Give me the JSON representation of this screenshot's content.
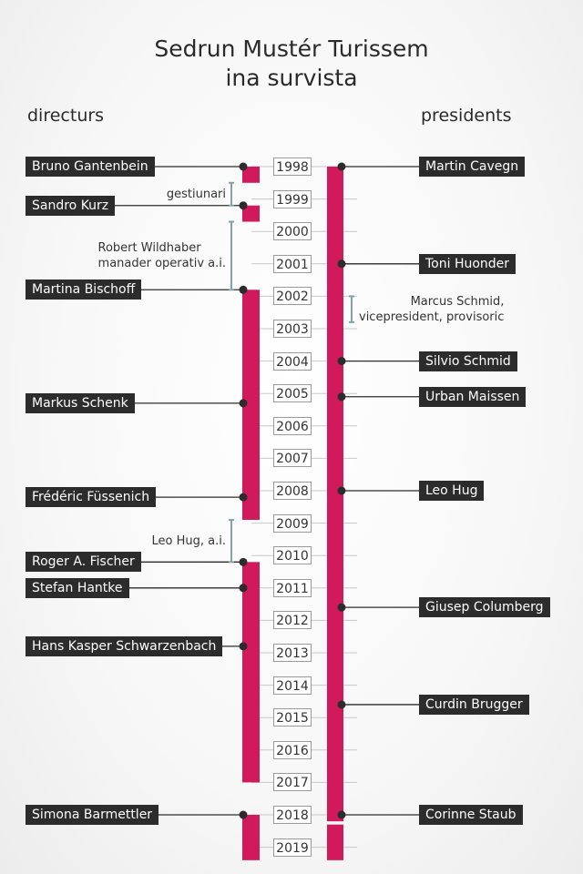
{
  "title_line1": "Sedrun Mustér Turissem",
  "title_line2": "ina survista",
  "left_heading": "directurs",
  "right_heading": "presidents",
  "colors": {
    "accent": "#d11a5b",
    "label_bg": "#2c2c2c",
    "connector": "#2c2c2c",
    "bracket": "#7fa3ad"
  },
  "years": [
    "1998",
    "1999",
    "2000",
    "2001",
    "2002",
    "2003",
    "2004",
    "2005",
    "2006",
    "2007",
    "2008",
    "2009",
    "2010",
    "2011",
    "2012",
    "2013",
    "2014",
    "2015",
    "2016",
    "2017",
    "2018",
    "2019"
  ],
  "directors": [
    {
      "name": "Bruno Gantenbein",
      "start": 1998.0
    },
    {
      "name": "Sandro Kurz",
      "start": 1999.2
    },
    {
      "name": "Martina Bischoff",
      "start": 2001.8
    },
    {
      "name": "Markus Schenk",
      "start": 2005.3
    },
    {
      "name": "Frédéric Füssenich",
      "start": 2008.2
    },
    {
      "name": "Roger A. Fischer",
      "start": 2010.2
    },
    {
      "name": "Stefan Hantke",
      "start": 2011.0
    },
    {
      "name": "Hans Kasper Schwarzenbach",
      "start": 2012.8
    },
    {
      "name": "Simona Barmettler",
      "start": 2018.0
    }
  ],
  "presidents": [
    {
      "name": "Martin Cavegn",
      "start": 1998.0
    },
    {
      "name": "Toni Huonder",
      "start": 2001.0
    },
    {
      "name": "Silvio Schmid",
      "start": 2004.0
    },
    {
      "name": "Urban Maissen",
      "start": 2005.1
    },
    {
      "name": "Leo Hug",
      "start": 2008.0
    },
    {
      "name": "Giusep Columberg",
      "start": 2011.6
    },
    {
      "name": "Curdin Brugger",
      "start": 2014.6
    },
    {
      "name": "Corinne Staub",
      "start": 2018.0
    }
  ],
  "interims": [
    {
      "side": "left",
      "lines": [
        "gestiunari"
      ],
      "from": 1998.5,
      "to": 1999.2
    },
    {
      "side": "left",
      "lines": [
        "Robert Wildhaber",
        "manader operativ a.i."
      ],
      "from": 1999.7,
      "to": 2001.8
    },
    {
      "side": "left",
      "lines": [
        "Leo Hug, a.i."
      ],
      "from": 2008.9,
      "to": 2010.2
    },
    {
      "side": "right",
      "lines": [
        "Marcus Schmid,",
        "vicepresident, provisoric"
      ],
      "from": 2002.0,
      "to": 2002.8
    }
  ],
  "director_bars": [
    {
      "from": 1998.0,
      "to": 1998.5
    },
    {
      "from": 1999.2,
      "to": 1999.7
    },
    {
      "from": 2001.8,
      "to": 2008.9
    },
    {
      "from": 2010.2,
      "to": 2017.0
    },
    {
      "from": 2018.0,
      "to": 2019.4
    }
  ],
  "president_bars": [
    {
      "from": 1998.0,
      "to": 2018.2
    },
    {
      "from": 2018.3,
      "to": 2019.4
    }
  ]
}
